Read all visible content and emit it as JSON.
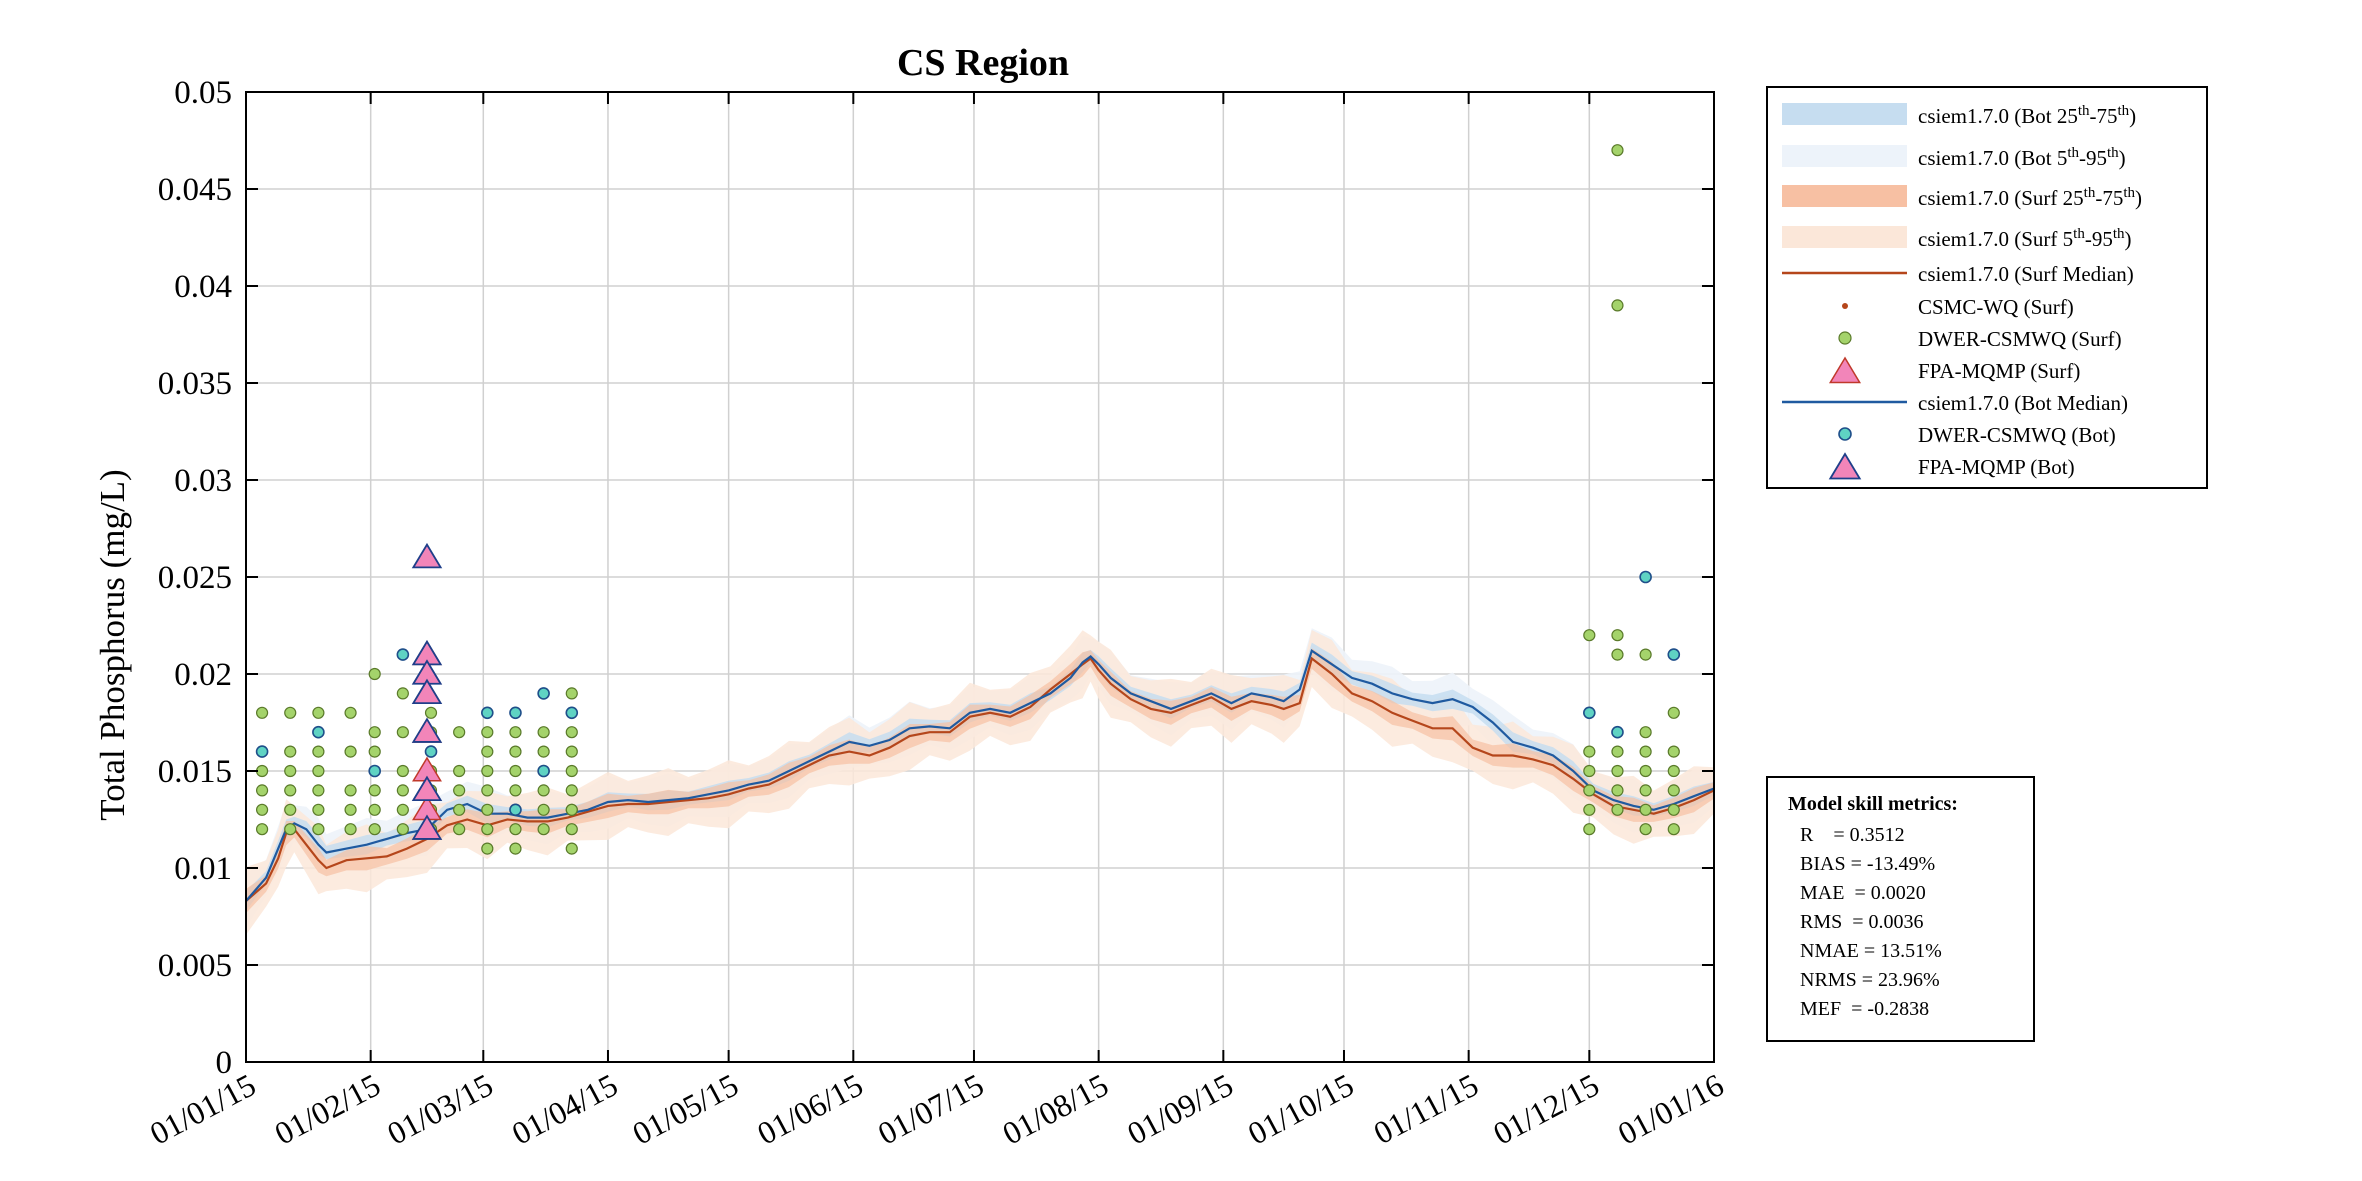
{
  "chart_data": {
    "type": "line",
    "title": "CS Region",
    "xlabel": "",
    "ylabel": "Total Phosphorus (mg/L)",
    "ylim": [
      0,
      0.05
    ],
    "xlim_days": [
      0,
      365
    ],
    "grid": true,
    "y_ticks": [
      {
        "value": 0,
        "label": "0"
      },
      {
        "value": 0.005,
        "label": "0.005"
      },
      {
        "value": 0.01,
        "label": "0.01"
      },
      {
        "value": 0.015,
        "label": "0.015"
      },
      {
        "value": 0.02,
        "label": "0.02"
      },
      {
        "value": 0.025,
        "label": "0.025"
      },
      {
        "value": 0.03,
        "label": "0.03"
      },
      {
        "value": 0.035,
        "label": "0.035"
      },
      {
        "value": 0.04,
        "label": "0.04"
      },
      {
        "value": 0.045,
        "label": "0.045"
      },
      {
        "value": 0.05,
        "label": "0.05"
      }
    ],
    "x_ticks": [
      {
        "day": 0,
        "label": "01/01/15"
      },
      {
        "day": 31,
        "label": "01/02/15"
      },
      {
        "day": 59,
        "label": "01/03/15"
      },
      {
        "day": 90,
        "label": "01/04/15"
      },
      {
        "day": 120,
        "label": "01/05/15"
      },
      {
        "day": 151,
        "label": "01/06/15"
      },
      {
        "day": 181,
        "label": "01/07/15"
      },
      {
        "day": 212,
        "label": "01/08/15"
      },
      {
        "day": 243,
        "label": "01/09/15"
      },
      {
        "day": 273,
        "label": "01/10/15"
      },
      {
        "day": 304,
        "label": "01/11/15"
      },
      {
        "day": 334,
        "label": "01/12/15"
      },
      {
        "day": 365,
        "label": "01/01/16"
      }
    ],
    "series": [
      {
        "name": "csiem1.7.0 (Bot Median)",
        "color": "#1f5aa0",
        "x": [
          0,
          5,
          8,
          10,
          12,
          15,
          18,
          20,
          25,
          30,
          35,
          40,
          45,
          50,
          55,
          60,
          65,
          70,
          75,
          80,
          85,
          90,
          95,
          100,
          105,
          110,
          115,
          120,
          125,
          130,
          135,
          140,
          145,
          150,
          155,
          160,
          165,
          170,
          175,
          180,
          185,
          190,
          195,
          200,
          205,
          208,
          210,
          212,
          215,
          220,
          225,
          230,
          235,
          240,
          245,
          250,
          255,
          258,
          262,
          265,
          270,
          275,
          280,
          285,
          290,
          295,
          300,
          305,
          310,
          315,
          320,
          325,
          330,
          335,
          340,
          345,
          350,
          355,
          360,
          365
        ],
        "y": [
          0.0083,
          0.0095,
          0.011,
          0.012,
          0.0123,
          0.012,
          0.0112,
          0.0108,
          0.011,
          0.0112,
          0.0115,
          0.0118,
          0.012,
          0.013,
          0.0133,
          0.0128,
          0.0128,
          0.0126,
          0.0126,
          0.0128,
          0.013,
          0.0134,
          0.0135,
          0.0134,
          0.0135,
          0.0136,
          0.0138,
          0.014,
          0.0143,
          0.0145,
          0.015,
          0.0155,
          0.016,
          0.0165,
          0.0163,
          0.0166,
          0.0172,
          0.0173,
          0.0172,
          0.018,
          0.0182,
          0.018,
          0.0185,
          0.019,
          0.0198,
          0.0206,
          0.0209,
          0.0205,
          0.0198,
          0.019,
          0.0186,
          0.0182,
          0.0186,
          0.019,
          0.0185,
          0.019,
          0.0188,
          0.0186,
          0.0192,
          0.0212,
          0.0205,
          0.0198,
          0.0195,
          0.019,
          0.0187,
          0.0185,
          0.0187,
          0.0183,
          0.0175,
          0.0165,
          0.0162,
          0.0158,
          0.015,
          0.014,
          0.0135,
          0.0132,
          0.013,
          0.0133,
          0.0137,
          0.0141
        ]
      },
      {
        "name": "csiem1.7.0 (Surf Median)",
        "color": "#b5461b",
        "x": [
          0,
          5,
          8,
          10,
          12,
          15,
          18,
          20,
          25,
          30,
          35,
          40,
          45,
          50,
          55,
          60,
          65,
          70,
          75,
          80,
          85,
          90,
          95,
          100,
          105,
          110,
          115,
          120,
          125,
          130,
          135,
          140,
          145,
          150,
          155,
          160,
          165,
          170,
          175,
          180,
          185,
          190,
          195,
          200,
          205,
          208,
          210,
          212,
          215,
          220,
          225,
          230,
          235,
          240,
          245,
          250,
          255,
          258,
          262,
          265,
          270,
          275,
          280,
          285,
          290,
          295,
          300,
          305,
          310,
          315,
          320,
          325,
          330,
          335,
          340,
          345,
          350,
          355,
          360,
          365
        ],
        "y": [
          0.0083,
          0.0092,
          0.0105,
          0.0118,
          0.012,
          0.0112,
          0.0104,
          0.01,
          0.0104,
          0.0105,
          0.0106,
          0.011,
          0.0115,
          0.0122,
          0.0125,
          0.0122,
          0.0125,
          0.0124,
          0.0124,
          0.0126,
          0.0129,
          0.0132,
          0.0133,
          0.0133,
          0.0134,
          0.0135,
          0.0136,
          0.0138,
          0.0141,
          0.0143,
          0.0148,
          0.0153,
          0.0158,
          0.016,
          0.0158,
          0.0162,
          0.0168,
          0.017,
          0.017,
          0.0178,
          0.018,
          0.0178,
          0.0183,
          0.0192,
          0.02,
          0.0205,
          0.0208,
          0.0202,
          0.0195,
          0.0187,
          0.0182,
          0.018,
          0.0184,
          0.0188,
          0.0182,
          0.0186,
          0.0184,
          0.0182,
          0.0185,
          0.0208,
          0.02,
          0.019,
          0.0186,
          0.018,
          0.0176,
          0.0172,
          0.0172,
          0.0162,
          0.0158,
          0.0158,
          0.0156,
          0.0153,
          0.0146,
          0.0138,
          0.0132,
          0.013,
          0.0128,
          0.0131,
          0.0135,
          0.014
        ]
      }
    ],
    "bands": [
      {
        "name": "csiem1.7.0 (Bot 25th-75th)",
        "color": "#c6ddf0",
        "half_width": 0.0004
      },
      {
        "name": "csiem1.7.0 (Bot 5th-95th)",
        "color": "#edf3fa",
        "half_width": 0.0011
      },
      {
        "name": "csiem1.7.0 (Surf 25th-75th)",
        "color": "#f7c0a3",
        "half_width": 0.0005
      },
      {
        "name": "csiem1.7.0 (Surf 5th-95th)",
        "color": "#fbe7d9",
        "half_width": 0.0014
      }
    ],
    "scatter": {
      "dwer_surf": {
        "name": "DWER-CSMWQ (Surf)",
        "color": "#a4d36b",
        "points": [
          [
            4,
            0.018
          ],
          [
            4,
            0.015
          ],
          [
            4,
            0.014
          ],
          [
            4,
            0.013
          ],
          [
            4,
            0.012
          ],
          [
            11,
            0.018
          ],
          [
            11,
            0.016
          ],
          [
            11,
            0.015
          ],
          [
            11,
            0.014
          ],
          [
            11,
            0.013
          ],
          [
            11,
            0.012
          ],
          [
            18,
            0.018
          ],
          [
            18,
            0.016
          ],
          [
            18,
            0.015
          ],
          [
            18,
            0.014
          ],
          [
            18,
            0.013
          ],
          [
            18,
            0.012
          ],
          [
            26,
            0.018
          ],
          [
            26,
            0.016
          ],
          [
            26,
            0.014
          ],
          [
            26,
            0.013
          ],
          [
            26,
            0.012
          ],
          [
            32,
            0.02
          ],
          [
            32,
            0.017
          ],
          [
            32,
            0.016
          ],
          [
            32,
            0.014
          ],
          [
            32,
            0.013
          ],
          [
            32,
            0.012
          ],
          [
            39,
            0.019
          ],
          [
            39,
            0.017
          ],
          [
            39,
            0.015
          ],
          [
            39,
            0.014
          ],
          [
            39,
            0.013
          ],
          [
            39,
            0.012
          ],
          [
            46,
            0.018
          ],
          [
            46,
            0.017
          ],
          [
            46,
            0.015
          ],
          [
            46,
            0.014
          ],
          [
            46,
            0.013
          ],
          [
            46,
            0.012
          ],
          [
            53,
            0.017
          ],
          [
            53,
            0.015
          ],
          [
            53,
            0.014
          ],
          [
            53,
            0.013
          ],
          [
            53,
            0.012
          ],
          [
            60,
            0.017
          ],
          [
            60,
            0.016
          ],
          [
            60,
            0.015
          ],
          [
            60,
            0.014
          ],
          [
            60,
            0.013
          ],
          [
            60,
            0.012
          ],
          [
            60,
            0.011
          ],
          [
            67,
            0.017
          ],
          [
            67,
            0.016
          ],
          [
            67,
            0.015
          ],
          [
            67,
            0.014
          ],
          [
            67,
            0.013
          ],
          [
            67,
            0.012
          ],
          [
            67,
            0.011
          ],
          [
            74,
            0.017
          ],
          [
            74,
            0.016
          ],
          [
            74,
            0.015
          ],
          [
            74,
            0.014
          ],
          [
            74,
            0.013
          ],
          [
            74,
            0.012
          ],
          [
            81,
            0.017
          ],
          [
            81,
            0.016
          ],
          [
            81,
            0.014
          ],
          [
            81,
            0.013
          ],
          [
            81,
            0.012
          ],
          [
            81,
            0.011
          ],
          [
            81,
            0.019
          ],
          [
            81,
            0.015
          ],
          [
            81,
            0.013
          ],
          [
            334,
            0.022
          ],
          [
            334,
            0.016
          ],
          [
            334,
            0.015
          ],
          [
            334,
            0.014
          ],
          [
            334,
            0.013
          ],
          [
            334,
            0.012
          ],
          [
            341,
            0.047
          ],
          [
            341,
            0.039
          ],
          [
            341,
            0.022
          ],
          [
            341,
            0.021
          ],
          [
            341,
            0.016
          ],
          [
            341,
            0.015
          ],
          [
            341,
            0.014
          ],
          [
            341,
            0.013
          ],
          [
            348,
            0.021
          ],
          [
            348,
            0.017
          ],
          [
            348,
            0.016
          ],
          [
            348,
            0.015
          ],
          [
            348,
            0.014
          ],
          [
            348,
            0.013
          ],
          [
            348,
            0.012
          ],
          [
            355,
            0.018
          ],
          [
            355,
            0.016
          ],
          [
            355,
            0.015
          ],
          [
            355,
            0.014
          ],
          [
            355,
            0.013
          ],
          [
            355,
            0.012
          ]
        ]
      },
      "dwer_bot": {
        "name": "DWER-CSMWQ (Bot)",
        "color": "#5fd3c3",
        "points": [
          [
            4,
            0.016
          ],
          [
            18,
            0.017
          ],
          [
            32,
            0.015
          ],
          [
            39,
            0.021
          ],
          [
            46,
            0.016
          ],
          [
            60,
            0.018
          ],
          [
            67,
            0.018
          ],
          [
            67,
            0.013
          ],
          [
            74,
            0.019
          ],
          [
            74,
            0.015
          ],
          [
            81,
            0.018
          ],
          [
            334,
            0.018
          ],
          [
            341,
            0.017
          ],
          [
            348,
            0.025
          ],
          [
            355,
            0.021
          ]
        ]
      },
      "fpa_surf": {
        "name": "FPA-MQMP (Surf)",
        "color": "#f285b9",
        "points": [
          [
            45,
            0.021
          ],
          [
            45,
            0.02
          ],
          [
            45,
            0.019
          ],
          [
            45,
            0.017
          ],
          [
            45,
            0.015
          ],
          [
            45,
            0.014
          ],
          [
            45,
            0.013
          ],
          [
            45,
            0.012
          ]
        ]
      },
      "fpa_bot": {
        "name": "FPA-MQMP (Bot)",
        "color": "#f285b9",
        "points": [
          [
            45,
            0.026
          ],
          [
            45,
            0.021
          ],
          [
            45,
            0.02
          ],
          [
            45,
            0.019
          ],
          [
            45,
            0.017
          ],
          [
            45,
            0.014
          ],
          [
            45,
            0.012
          ]
        ]
      },
      "csmc_surf": {
        "name": "CSMC-WQ (Surf)",
        "color": "#b5461b",
        "points": []
      }
    }
  },
  "legend": {
    "entries": [
      {
        "prefix": "csiem1.7.0 (Bot 25",
        "sup1": "th",
        "mid": "-75",
        "sup2": "th",
        "suffix": ")"
      },
      {
        "prefix": "csiem1.7.0 (Bot 5",
        "sup1": "th",
        "mid": "-95",
        "sup2": "th",
        "suffix": ")"
      },
      {
        "prefix": "csiem1.7.0 (Surf 25",
        "sup1": "th",
        "mid": "-75",
        "sup2": "th",
        "suffix": ")"
      },
      {
        "prefix": "csiem1.7.0 (Surf 5",
        "sup1": "th",
        "mid": "-95",
        "sup2": "th",
        "suffix": ")"
      },
      {
        "label": "csiem1.7.0 (Surf Median)"
      },
      {
        "label": "CSMC-WQ (Surf)"
      },
      {
        "label": "DWER-CSMWQ (Surf)"
      },
      {
        "label": "FPA-MQMP (Surf)"
      },
      {
        "label": "csiem1.7.0 (Bot Median)"
      },
      {
        "label": "DWER-CSMWQ (Bot)"
      },
      {
        "label": "FPA-MQMP (Bot)"
      }
    ]
  },
  "metrics": {
    "title": "Model skill metrics:",
    "lines": [
      "R    = 0.3512",
      "BIAS = -13.49%",
      "MAE  = 0.0020",
      "RMS  = 0.0036",
      "NMAE = 13.51%",
      "NRMS = 23.96%",
      "MEF  = -0.2838"
    ]
  }
}
